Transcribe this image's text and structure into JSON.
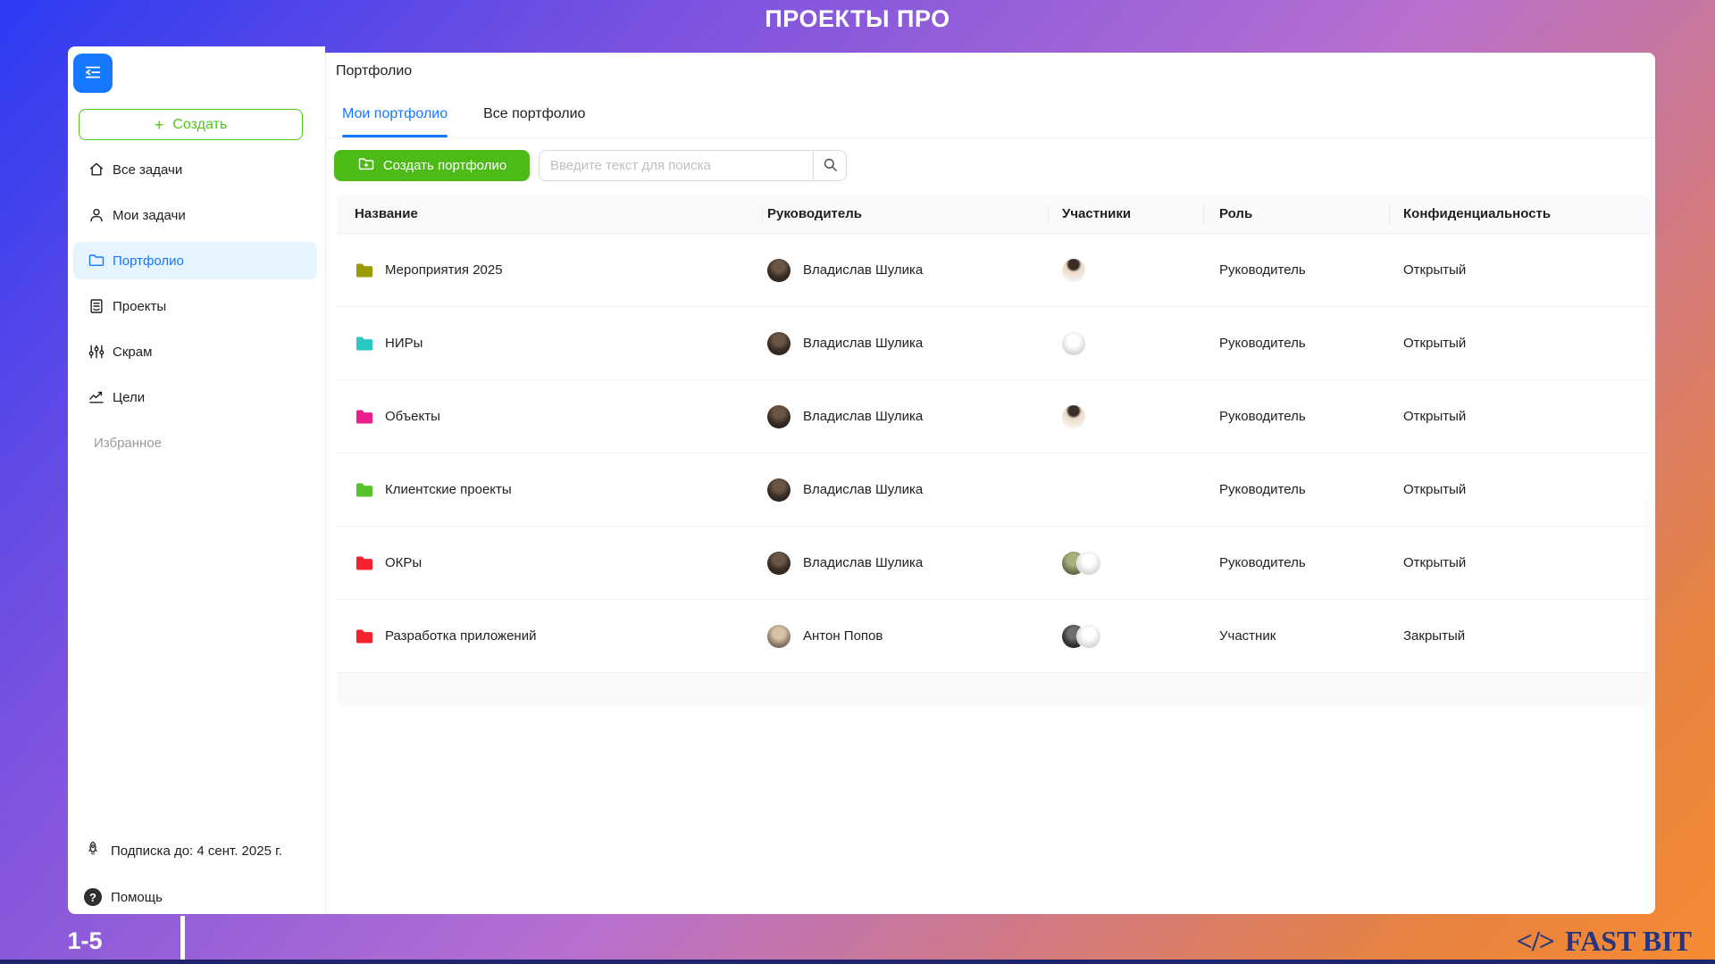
{
  "app": {
    "header_title": "ПРОЕКТЫ ПРО",
    "page_range": "1-5",
    "brand_code": "</>",
    "brand_name": "FAST BIT"
  },
  "colors": {
    "accent_blue": "#1677ff",
    "primary_green": "#4cbb17",
    "brand_navy": "#27357e"
  },
  "sidebar": {
    "collapse_icon": "menu-fold-icon",
    "create_label": "Создать",
    "items": [
      {
        "id": "all-tasks",
        "label": "Все задачи",
        "icon": "home",
        "active": false,
        "muted": false
      },
      {
        "id": "my-tasks",
        "label": "Мои задачи",
        "icon": "user",
        "active": false,
        "muted": false
      },
      {
        "id": "portfolio",
        "label": "Портфолио",
        "icon": "folder",
        "active": true,
        "muted": false
      },
      {
        "id": "projects",
        "label": "Проекты",
        "icon": "document",
        "active": false,
        "muted": false
      },
      {
        "id": "scrum",
        "label": "Скрам",
        "icon": "sliders",
        "active": false,
        "muted": false
      },
      {
        "id": "goals",
        "label": "Цели",
        "icon": "chart",
        "active": false,
        "muted": false
      },
      {
        "id": "favorites",
        "label": "Избранное",
        "icon": null,
        "active": false,
        "muted": true
      }
    ],
    "footer": [
      {
        "id": "subscription",
        "label": "Подписка до: 4 сент. 2025 г.",
        "icon": "rocket"
      },
      {
        "id": "help",
        "label": "Помощь",
        "icon": "question"
      }
    ]
  },
  "main": {
    "title": "Портфолио",
    "tabs": [
      {
        "id": "my-portfolios",
        "label": "Мои портфолио",
        "active": true
      },
      {
        "id": "all-portfolios",
        "label": "Все портфолио",
        "active": false
      }
    ],
    "toolbar": {
      "create_button_label": "Создать портфолио",
      "search_placeholder": "Введите текст для поиска"
    },
    "table": {
      "columns": [
        "Название",
        "Руководитель",
        "Участники",
        "Роль",
        "Конфиденциальность"
      ],
      "rows": [
        {
          "name": "Мероприятия 2025",
          "folder_color": "#9a9b05",
          "lead": "Владислав Шулика",
          "lead_avatar": "vlad",
          "participants": [
            "light"
          ],
          "role": "Руководитель",
          "privacy": "Открытый"
        },
        {
          "name": "НИРы",
          "folder_color": "#29c8c0",
          "lead": "Владислав Шулика",
          "lead_avatar": "vlad",
          "participants": [
            "gray"
          ],
          "role": "Руководитель",
          "privacy": "Открытый"
        },
        {
          "name": "Объекты",
          "folder_color": "#ea1e8c",
          "lead": "Владислав Шулика",
          "lead_avatar": "vlad",
          "participants": [
            "light"
          ],
          "role": "Руководитель",
          "privacy": "Открытый"
        },
        {
          "name": "Клиентские проекты",
          "folder_color": "#55c42b",
          "lead": "Владислав Шулика",
          "lead_avatar": "vlad",
          "participants": [],
          "role": "Руководитель",
          "privacy": "Открытый"
        },
        {
          "name": "ОКРы",
          "folder_color": "#f5222d",
          "lead": "Владислав Шулика",
          "lead_avatar": "vlad",
          "participants": [
            "olive",
            "gray"
          ],
          "role": "Руководитель",
          "privacy": "Открытый"
        },
        {
          "name": "Разработка приложений",
          "folder_color": "#f5222d",
          "lead": "Антон Попов",
          "lead_avatar": "anton",
          "participants": [
            "dark",
            "gray"
          ],
          "role": "Участник",
          "privacy": "Закрытый"
        }
      ]
    }
  }
}
